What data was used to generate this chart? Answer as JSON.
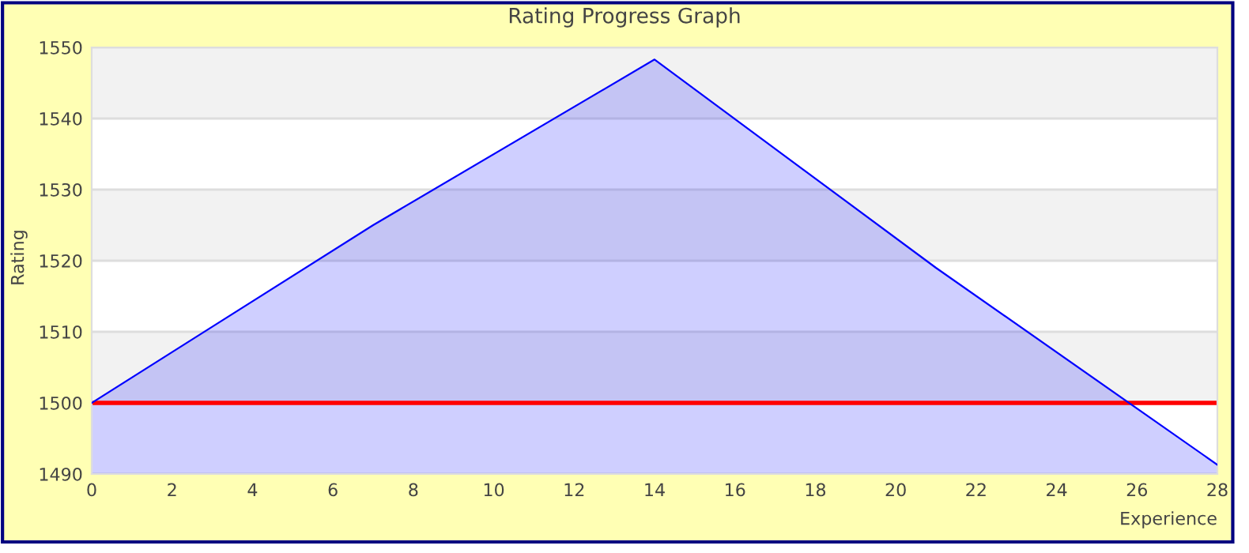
{
  "chart_data": {
    "type": "area",
    "title": "Rating Progress Graph",
    "xlabel": "Experience",
    "ylabel": "Rating",
    "x": [
      0,
      7,
      14,
      21,
      28
    ],
    "series": [
      {
        "color": "#0000ff",
        "values": [
          1500,
          1525,
          1548.3,
          1519,
          1491.3
        ]
      }
    ],
    "xlim": [
      0,
      28
    ],
    "xticks": [
      0,
      2,
      4,
      6,
      8,
      10,
      12,
      14,
      16,
      18,
      20,
      22,
      24,
      26,
      28
    ],
    "ylim": [
      1490,
      1550
    ],
    "yticks": [
      1490,
      1500,
      1510,
      1520,
      1530,
      1540,
      1550
    ],
    "grid": "y",
    "legend": false,
    "ref_lines": [
      {
        "axis": "y",
        "value": 1500,
        "color": "#ff0000"
      }
    ]
  }
}
